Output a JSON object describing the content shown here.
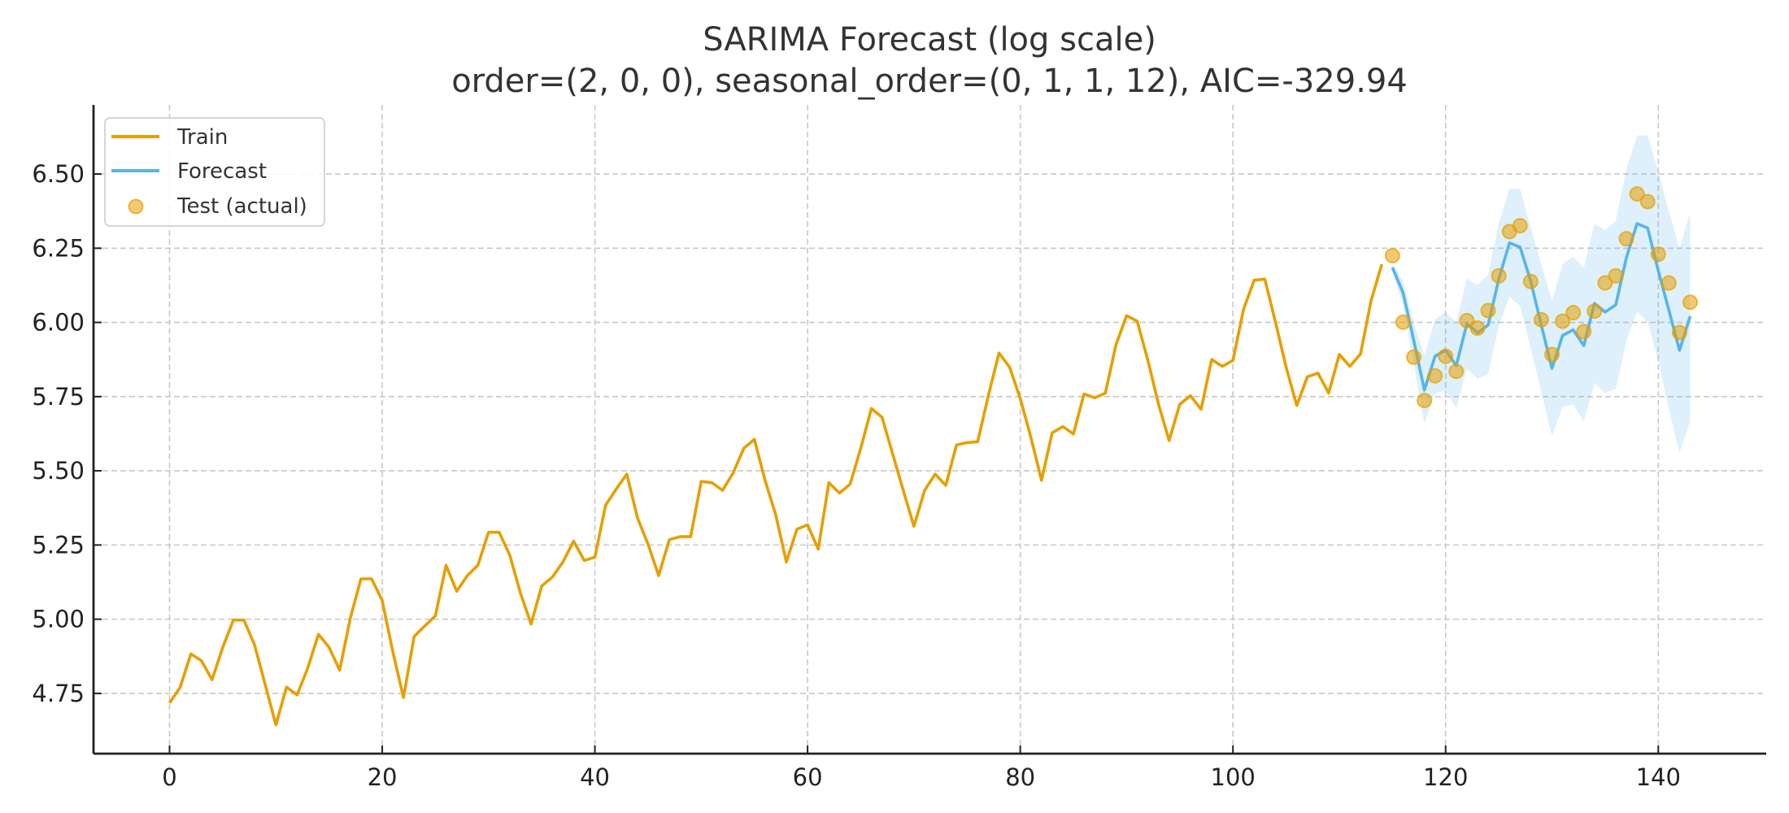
{
  "chart_data": {
    "type": "line",
    "title": "SARIMA Forecast (log scale)",
    "subtitle": "order=(2, 0, 0), seasonal_order=(0, 1, 1, 12), AIC=-329.94",
    "xlabel": "",
    "ylabel": "",
    "xlim": [
      -7.15,
      150.15
    ],
    "ylim": [
      4.547,
      6.733
    ],
    "xticks": [
      0,
      20,
      40,
      60,
      80,
      100,
      120,
      140
    ],
    "xtick_labels": [
      "0",
      "20",
      "40",
      "60",
      "80",
      "100",
      "120",
      "140"
    ],
    "yticks": [
      4.75,
      5.0,
      5.25,
      5.5,
      5.75,
      6.0,
      6.25,
      6.5
    ],
    "ytick_labels": [
      "4.75",
      "5.00",
      "5.25",
      "5.50",
      "5.75",
      "6.00",
      "6.25",
      "6.50"
    ],
    "grid": true,
    "legend_position": "top-left",
    "colors": {
      "train": "#E69F00",
      "forecast": "#56B4E9",
      "band": "#56B4E9",
      "test": "#E69F00"
    },
    "legend": [
      {
        "label": "Train",
        "kind": "line",
        "series": "train"
      },
      {
        "label": "Forecast",
        "kind": "line",
        "series": "forecast"
      },
      {
        "label": "Test (actual)",
        "kind": "marker",
        "series": "test"
      }
    ],
    "series": [
      {
        "name": "Train",
        "x_start": 0,
        "values": [
          4.718,
          4.771,
          4.883,
          4.86,
          4.796,
          4.905,
          4.997,
          4.997,
          4.913,
          4.779,
          4.644,
          4.771,
          4.745,
          4.836,
          4.949,
          4.905,
          4.828,
          5.004,
          5.136,
          5.136,
          5.063,
          4.89,
          4.736,
          4.942,
          4.977,
          5.011,
          5.182,
          5.094,
          5.147,
          5.182,
          5.293,
          5.293,
          5.215,
          5.088,
          4.984,
          5.112,
          5.142,
          5.193,
          5.263,
          5.198,
          5.209,
          5.384,
          5.438,
          5.489,
          5.342,
          5.252,
          5.147,
          5.268,
          5.278,
          5.278,
          5.464,
          5.46,
          5.434,
          5.493,
          5.576,
          5.606,
          5.468,
          5.352,
          5.193,
          5.303,
          5.318,
          5.236,
          5.46,
          5.425,
          5.455,
          5.576,
          5.71,
          5.68,
          5.557,
          5.434,
          5.313,
          5.434,
          5.489,
          5.451,
          5.587,
          5.595,
          5.598,
          5.753,
          5.897,
          5.849,
          5.743,
          5.613,
          5.468,
          5.628,
          5.649,
          5.624,
          5.759,
          5.746,
          5.762,
          5.924,
          6.023,
          6.004,
          5.872,
          5.724,
          5.602,
          5.724,
          5.753,
          5.707,
          5.875,
          5.852,
          5.872,
          6.045,
          6.142,
          6.146,
          6.001,
          5.849,
          5.72,
          5.817,
          5.829,
          5.762,
          5.892,
          5.852,
          5.894,
          6.075,
          6.196
        ]
      },
      {
        "name": "Forecast",
        "x_start": 115,
        "values": [
          6.185,
          6.1,
          5.94,
          5.772,
          5.886,
          5.906,
          5.854,
          5.996,
          5.965,
          5.991,
          6.146,
          6.268,
          6.254,
          6.14,
          5.991,
          5.845,
          5.956,
          5.975,
          5.922,
          6.064,
          6.035,
          6.059,
          6.218,
          6.333,
          6.318,
          6.174,
          6.041,
          5.906,
          6.021
        ]
      },
      {
        "name": "Forecast interval",
        "x_start": 115,
        "upper": [
          6.2,
          6.14,
          6.0,
          5.89,
          6.01,
          6.035,
          6.0,
          6.148,
          6.126,
          6.16,
          6.333,
          6.45,
          6.45,
          6.32,
          6.196,
          6.073,
          6.196,
          6.222,
          6.183,
          6.331,
          6.311,
          6.342,
          6.516,
          6.63,
          6.63,
          6.507,
          6.374,
          6.25,
          6.37
        ],
        "lower": [
          6.17,
          6.06,
          5.86,
          5.66,
          5.76,
          5.77,
          5.71,
          5.845,
          5.81,
          5.827,
          5.99,
          6.087,
          6.055,
          5.914,
          5.767,
          5.617,
          5.716,
          5.723,
          5.667,
          5.795,
          5.763,
          5.776,
          5.936,
          6.037,
          6.0,
          5.872,
          5.708,
          5.562,
          5.667
        ]
      },
      {
        "name": "Test (actual)",
        "x_start": 115,
        "values": [
          6.225,
          6.001,
          5.883,
          5.737,
          5.82,
          5.886,
          5.835,
          6.006,
          5.981,
          6.04,
          6.157,
          6.306,
          6.326,
          6.138,
          6.009,
          5.892,
          6.004,
          6.033,
          5.969,
          6.038,
          6.133,
          6.157,
          6.282,
          6.433,
          6.407,
          6.23,
          6.133,
          5.966,
          6.068
        ]
      }
    ]
  }
}
